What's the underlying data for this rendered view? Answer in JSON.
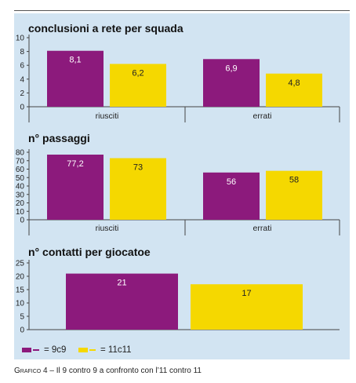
{
  "colors": {
    "series_9c9": "#8c1a7c",
    "series_11c11": "#f5d800",
    "panel": "#d2e4f2"
  },
  "legend": {
    "item_1": "= 9c9",
    "item_2": "= 11c11"
  },
  "caption": {
    "lead": "Grafico 4",
    "rest": " – Il 9 contro 9 a confronto con l’11 contro 11"
  },
  "chart_data": [
    {
      "type": "bar",
      "title": "conclusioni a rete per squada",
      "categories": [
        "riusciti",
        "errati"
      ],
      "series": [
        {
          "name": "9c9",
          "values": [
            8.1,
            6.9
          ],
          "labels": [
            "8,1",
            "6,9"
          ]
        },
        {
          "name": "11c11",
          "values": [
            6.2,
            4.8
          ],
          "labels": [
            "6,2",
            "4,8"
          ]
        }
      ],
      "ylim": [
        0,
        10
      ],
      "yticks": [
        0,
        2,
        4,
        6,
        8,
        10
      ],
      "grid": false,
      "legend": "bottom"
    },
    {
      "type": "bar",
      "title": "n° passaggi",
      "categories": [
        "riusciti",
        "errati"
      ],
      "series": [
        {
          "name": "9c9",
          "values": [
            77.2,
            56
          ],
          "labels": [
            "77,2",
            "56"
          ]
        },
        {
          "name": "11c11",
          "values": [
            73,
            58
          ],
          "labels": [
            "73",
            "58"
          ]
        }
      ],
      "ylim": [
        0,
        80
      ],
      "yticks": [
        0,
        10,
        20,
        30,
        40,
        50,
        60,
        70,
        80
      ],
      "grid": false,
      "legend": "bottom"
    },
    {
      "type": "bar",
      "title": "n° contatti per giocatoe",
      "categories": [
        ""
      ],
      "series": [
        {
          "name": "9c9",
          "values": [
            21
          ],
          "labels": [
            "21"
          ]
        },
        {
          "name": "11c11",
          "values": [
            17
          ],
          "labels": [
            "17"
          ]
        }
      ],
      "ylim": [
        0,
        25
      ],
      "yticks": [
        0,
        5,
        10,
        15,
        20,
        25
      ],
      "grid": false,
      "legend": "bottom"
    }
  ]
}
